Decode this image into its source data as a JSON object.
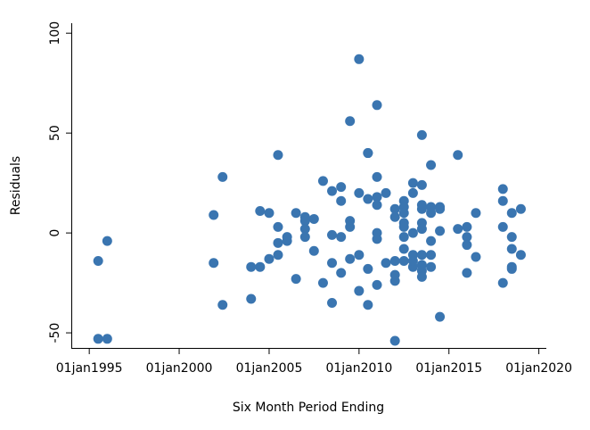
{
  "chart_data": {
    "type": "scatter",
    "title": "",
    "xlabel": "Six Month Period Ending",
    "ylabel": "Residuals",
    "x_type": "date",
    "xlim": [
      "1994-01-01",
      "2020-06-01"
    ],
    "ylim": [
      -58,
      105
    ],
    "x_ticks": [
      {
        "value": "1995-01-01",
        "label": "01jan1995"
      },
      {
        "value": "2000-01-01",
        "label": "01jan2000"
      },
      {
        "value": "2005-01-01",
        "label": "01jan2005"
      },
      {
        "value": "2010-01-01",
        "label": "01jan2010"
      },
      {
        "value": "2015-01-01",
        "label": "01jan2015"
      },
      {
        "value": "2020-01-01",
        "label": "01jan2020"
      }
    ],
    "y_ticks": [
      {
        "value": -50,
        "label": "-50"
      },
      {
        "value": 0,
        "label": "0"
      },
      {
        "value": 50,
        "label": "50"
      },
      {
        "value": 100,
        "label": "100"
      }
    ],
    "grid": false,
    "marker_color": "#3a75b0",
    "series": [
      {
        "points": [
          {
            "x": "1995-07-01",
            "y": -53
          },
          {
            "x": "1995-07-01",
            "y": -14
          },
          {
            "x": "1996-01-01",
            "y": -53
          },
          {
            "x": "1996-01-01",
            "y": -4
          },
          {
            "x": "2001-12-01",
            "y": -15
          },
          {
            "x": "2001-12-01",
            "y": 9
          },
          {
            "x": "2002-06-01",
            "y": -36
          },
          {
            "x": "2002-06-01",
            "y": 28
          },
          {
            "x": "2004-01-01",
            "y": -17
          },
          {
            "x": "2004-01-01",
            "y": -33
          },
          {
            "x": "2004-07-01",
            "y": -17
          },
          {
            "x": "2004-07-01",
            "y": 11
          },
          {
            "x": "2005-01-01",
            "y": -13
          },
          {
            "x": "2005-01-01",
            "y": 10
          },
          {
            "x": "2005-07-01",
            "y": -5
          },
          {
            "x": "2005-07-01",
            "y": -11
          },
          {
            "x": "2005-07-01",
            "y": 3
          },
          {
            "x": "2005-07-01",
            "y": 39
          },
          {
            "x": "2006-01-01",
            "y": -4
          },
          {
            "x": "2006-01-01",
            "y": -2
          },
          {
            "x": "2006-07-01",
            "y": -23
          },
          {
            "x": "2006-07-01",
            "y": 10
          },
          {
            "x": "2007-01-01",
            "y": 8
          },
          {
            "x": "2007-01-01",
            "y": 6
          },
          {
            "x": "2007-01-01",
            "y": 2
          },
          {
            "x": "2007-01-01",
            "y": -2
          },
          {
            "x": "2007-07-01",
            "y": -9
          },
          {
            "x": "2007-07-01",
            "y": 7
          },
          {
            "x": "2008-01-01",
            "y": -25
          },
          {
            "x": "2008-01-01",
            "y": 26
          },
          {
            "x": "2008-07-01",
            "y": -35
          },
          {
            "x": "2008-07-01",
            "y": -15
          },
          {
            "x": "2008-07-01",
            "y": -1
          },
          {
            "x": "2008-07-01",
            "y": 21
          },
          {
            "x": "2009-01-01",
            "y": 23
          },
          {
            "x": "2009-01-01",
            "y": 16
          },
          {
            "x": "2009-01-01",
            "y": -2
          },
          {
            "x": "2009-01-01",
            "y": -20
          },
          {
            "x": "2009-07-01",
            "y": 56
          },
          {
            "x": "2009-07-01",
            "y": 6
          },
          {
            "x": "2009-07-01",
            "y": 3
          },
          {
            "x": "2009-07-01",
            "y": -13
          },
          {
            "x": "2010-01-01",
            "y": 87
          },
          {
            "x": "2010-01-01",
            "y": 20
          },
          {
            "x": "2010-01-01",
            "y": -11
          },
          {
            "x": "2010-01-01",
            "y": -29
          },
          {
            "x": "2010-07-01",
            "y": 40
          },
          {
            "x": "2010-07-01",
            "y": 40
          },
          {
            "x": "2010-07-01",
            "y": 17
          },
          {
            "x": "2010-07-01",
            "y": -18
          },
          {
            "x": "2010-07-01",
            "y": -36
          },
          {
            "x": "2011-01-01",
            "y": 64
          },
          {
            "x": "2011-01-01",
            "y": 28
          },
          {
            "x": "2011-01-01",
            "y": 18
          },
          {
            "x": "2011-01-01",
            "y": 14
          },
          {
            "x": "2011-01-01",
            "y": 0
          },
          {
            "x": "2011-01-01",
            "y": -3
          },
          {
            "x": "2011-01-01",
            "y": -26
          },
          {
            "x": "2011-07-01",
            "y": 20
          },
          {
            "x": "2011-07-01",
            "y": -15
          },
          {
            "x": "2012-01-01",
            "y": 12
          },
          {
            "x": "2012-01-01",
            "y": 8
          },
          {
            "x": "2012-01-01",
            "y": -14
          },
          {
            "x": "2012-01-01",
            "y": -21
          },
          {
            "x": "2012-01-01",
            "y": -24
          },
          {
            "x": "2012-01-01",
            "y": -54
          },
          {
            "x": "2012-07-01",
            "y": 16
          },
          {
            "x": "2012-07-01",
            "y": 13
          },
          {
            "x": "2012-07-01",
            "y": 10
          },
          {
            "x": "2012-07-01",
            "y": 5
          },
          {
            "x": "2012-07-01",
            "y": 3
          },
          {
            "x": "2012-07-01",
            "y": -2
          },
          {
            "x": "2012-07-01",
            "y": -8
          },
          {
            "x": "2012-07-01",
            "y": -14
          },
          {
            "x": "2013-01-01",
            "y": 25
          },
          {
            "x": "2013-01-01",
            "y": 20
          },
          {
            "x": "2013-01-01",
            "y": 0
          },
          {
            "x": "2013-01-01",
            "y": -11
          },
          {
            "x": "2013-01-01",
            "y": -17
          },
          {
            "x": "2013-01-01",
            "y": -14
          },
          {
            "x": "2013-07-01",
            "y": 49
          },
          {
            "x": "2013-07-01",
            "y": 24
          },
          {
            "x": "2013-07-01",
            "y": 14
          },
          {
            "x": "2013-07-01",
            "y": 12
          },
          {
            "x": "2013-07-01",
            "y": 5
          },
          {
            "x": "2013-07-01",
            "y": 2
          },
          {
            "x": "2013-07-01",
            "y": -11
          },
          {
            "x": "2013-07-01",
            "y": -16
          },
          {
            "x": "2013-07-01",
            "y": -19
          },
          {
            "x": "2013-07-01",
            "y": -22
          },
          {
            "x": "2014-01-01",
            "y": 34
          },
          {
            "x": "2014-01-01",
            "y": 13
          },
          {
            "x": "2014-01-01",
            "y": 10
          },
          {
            "x": "2014-01-01",
            "y": -4
          },
          {
            "x": "2014-01-01",
            "y": -11
          },
          {
            "x": "2014-01-01",
            "y": -17
          },
          {
            "x": "2014-07-01",
            "y": 13
          },
          {
            "x": "2014-07-01",
            "y": 12
          },
          {
            "x": "2014-07-01",
            "y": 1
          },
          {
            "x": "2014-07-01",
            "y": -42
          },
          {
            "x": "2015-07-01",
            "y": 39
          },
          {
            "x": "2015-07-01",
            "y": 2
          },
          {
            "x": "2016-01-01",
            "y": 3
          },
          {
            "x": "2016-01-01",
            "y": -2
          },
          {
            "x": "2016-01-01",
            "y": -6
          },
          {
            "x": "2016-01-01",
            "y": -20
          },
          {
            "x": "2016-07-01",
            "y": 10
          },
          {
            "x": "2016-07-01",
            "y": -12
          },
          {
            "x": "2018-01-01",
            "y": 22
          },
          {
            "x": "2018-01-01",
            "y": 16
          },
          {
            "x": "2018-01-01",
            "y": 3
          },
          {
            "x": "2018-01-01",
            "y": -25
          },
          {
            "x": "2018-07-01",
            "y": 10
          },
          {
            "x": "2018-07-01",
            "y": -2
          },
          {
            "x": "2018-07-01",
            "y": -8
          },
          {
            "x": "2018-07-01",
            "y": -17
          },
          {
            "x": "2018-07-01",
            "y": -18
          },
          {
            "x": "2019-01-01",
            "y": 12
          },
          {
            "x": "2019-01-01",
            "y": -11
          }
        ]
      }
    ]
  }
}
